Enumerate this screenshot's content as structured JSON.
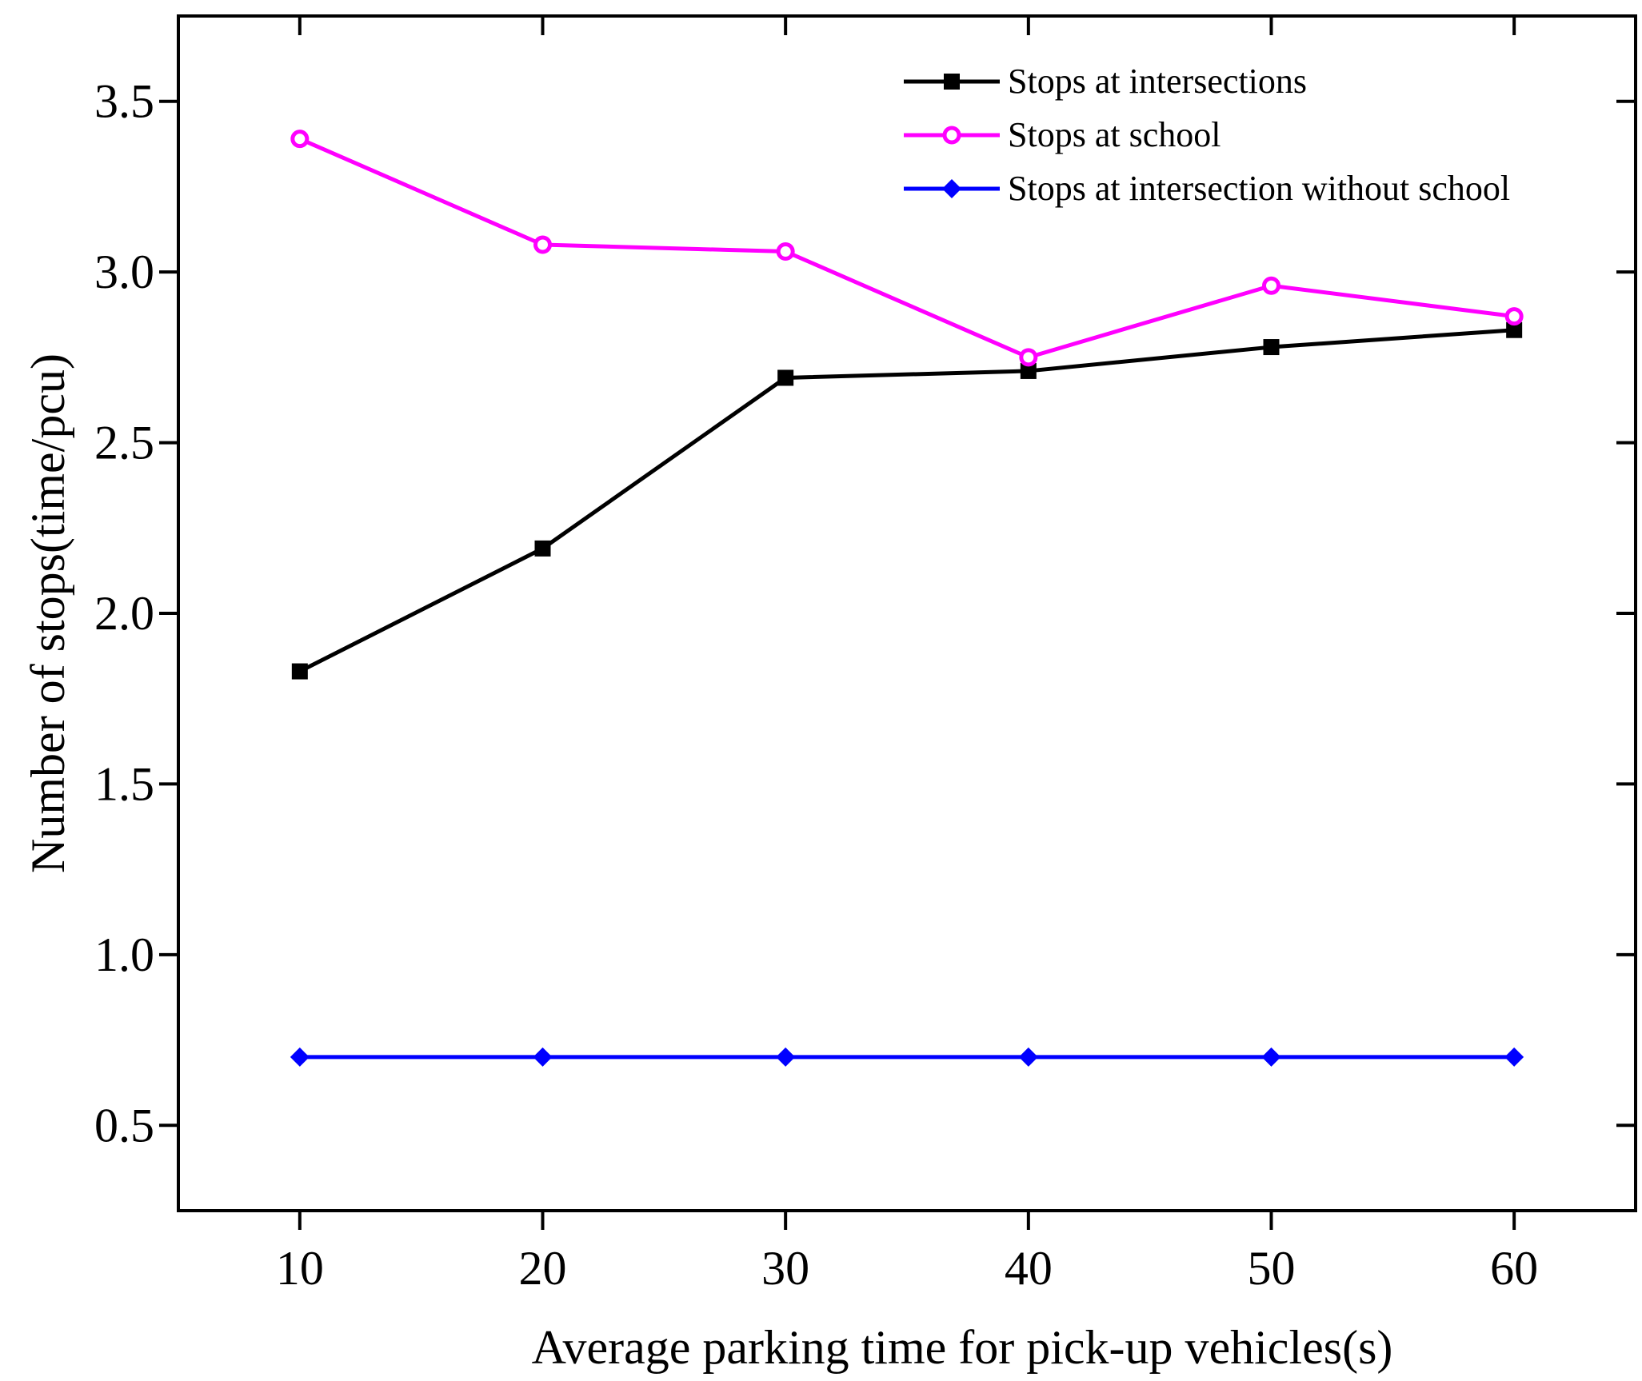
{
  "chart_data": {
    "type": "line",
    "title": "",
    "xlabel": "Average parking time for pick-up vehicles(s)",
    "ylabel": "Number of stops(time/pcu)",
    "x": [
      10,
      20,
      30,
      40,
      50,
      60
    ],
    "xlim": [
      5,
      65
    ],
    "ylim": [
      0.25,
      3.75
    ],
    "xticks": [
      10,
      20,
      30,
      40,
      50,
      60
    ],
    "xtick_labels": [
      "10",
      "20",
      "30",
      "40",
      "50",
      "60"
    ],
    "yticks": [
      0.5,
      1.0,
      1.5,
      2.0,
      2.5,
      3.0,
      3.5
    ],
    "ytick_labels": [
      "0.5",
      "1.0",
      "1.5",
      "2.0",
      "2.5",
      "3.0",
      "3.5"
    ],
    "grid": false,
    "legend_position": "top-right",
    "series": [
      {
        "name": "Stops at intersections",
        "color": "#000000",
        "marker": "square",
        "values": [
          1.83,
          2.19,
          2.69,
          2.71,
          2.78,
          2.83
        ]
      },
      {
        "name": "Stops at school",
        "color": "#ff00ff",
        "marker": "circle",
        "values": [
          3.39,
          3.08,
          3.06,
          2.75,
          2.96,
          2.87
        ]
      },
      {
        "name": "Stops at intersection without school",
        "color": "#0000ff",
        "marker": "diamond",
        "values": [
          0.7,
          0.7,
          0.7,
          0.7,
          0.7,
          0.7
        ]
      }
    ]
  }
}
